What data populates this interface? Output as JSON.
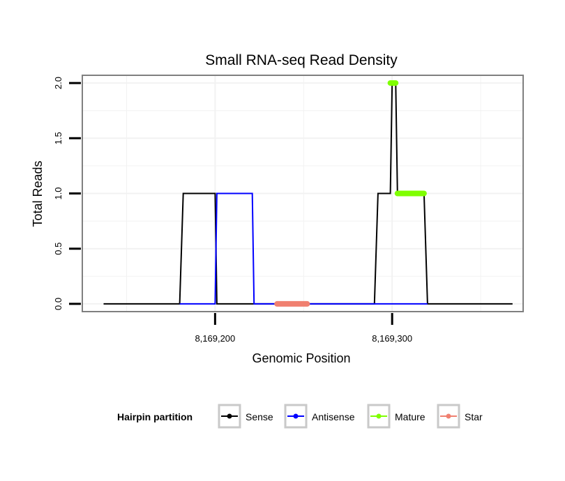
{
  "chart_data": {
    "type": "line",
    "title": "Small RNA-seq Read Density",
    "xlabel": "Genomic Position",
    "ylabel": "Total Reads",
    "xlim": [
      8169125,
      8169374
    ],
    "ylim": [
      -0.07,
      2.07
    ],
    "x_ticks": [
      {
        "value": 8169200,
        "label": "8,169,200"
      },
      {
        "value": 8169300,
        "label": "8,169,300"
      }
    ],
    "y_ticks": [
      {
        "value": 0,
        "label": "0.0"
      },
      {
        "value": 0.5,
        "label": "0.5"
      },
      {
        "value": 1,
        "label": "1.0"
      },
      {
        "value": 1.5,
        "label": "1.5"
      },
      {
        "value": 2,
        "label": "2.0"
      }
    ],
    "grid": true,
    "legend": {
      "title": "Hairpin partition",
      "position": "bottom",
      "entries": [
        {
          "name": "Sense",
          "color": "#000000"
        },
        {
          "name": "Antisense",
          "color": "#0000ff"
        },
        {
          "name": "Mature",
          "color": "#7fff00"
        },
        {
          "name": "Star",
          "color": "#f08070"
        }
      ]
    },
    "series": [
      {
        "name": "Sense",
        "color": "#000000",
        "style": "line",
        "x": [
          8169137,
          8169180,
          8169182,
          8169200,
          8169201,
          8169219,
          8169237,
          8169253,
          8169290,
          8169292,
          8169299,
          8169300,
          8169302,
          8169303,
          8169318,
          8169320,
          8169368
        ],
        "y": [
          0,
          0,
          1,
          1,
          0,
          0,
          0,
          0,
          0,
          1,
          1,
          2,
          2,
          1,
          1,
          0,
          0
        ]
      },
      {
        "name": "Antisense",
        "color": "#0000ff",
        "style": "line",
        "x": [
          8169180,
          8169200,
          8169201,
          8169221,
          8169222,
          8169290,
          8169320
        ],
        "y": [
          0,
          0,
          1,
          1,
          0,
          0,
          0
        ]
      },
      {
        "name": "Mature",
        "color": "#7fff00",
        "style": "thick",
        "x": [
          8169299,
          8169302,
          8169303,
          8169318
        ],
        "y": [
          2,
          2,
          1,
          1
        ]
      },
      {
        "name": "Star",
        "color": "#f08070",
        "style": "thick",
        "x": [
          8169235,
          8169252
        ],
        "y": [
          0,
          0
        ]
      }
    ]
  }
}
